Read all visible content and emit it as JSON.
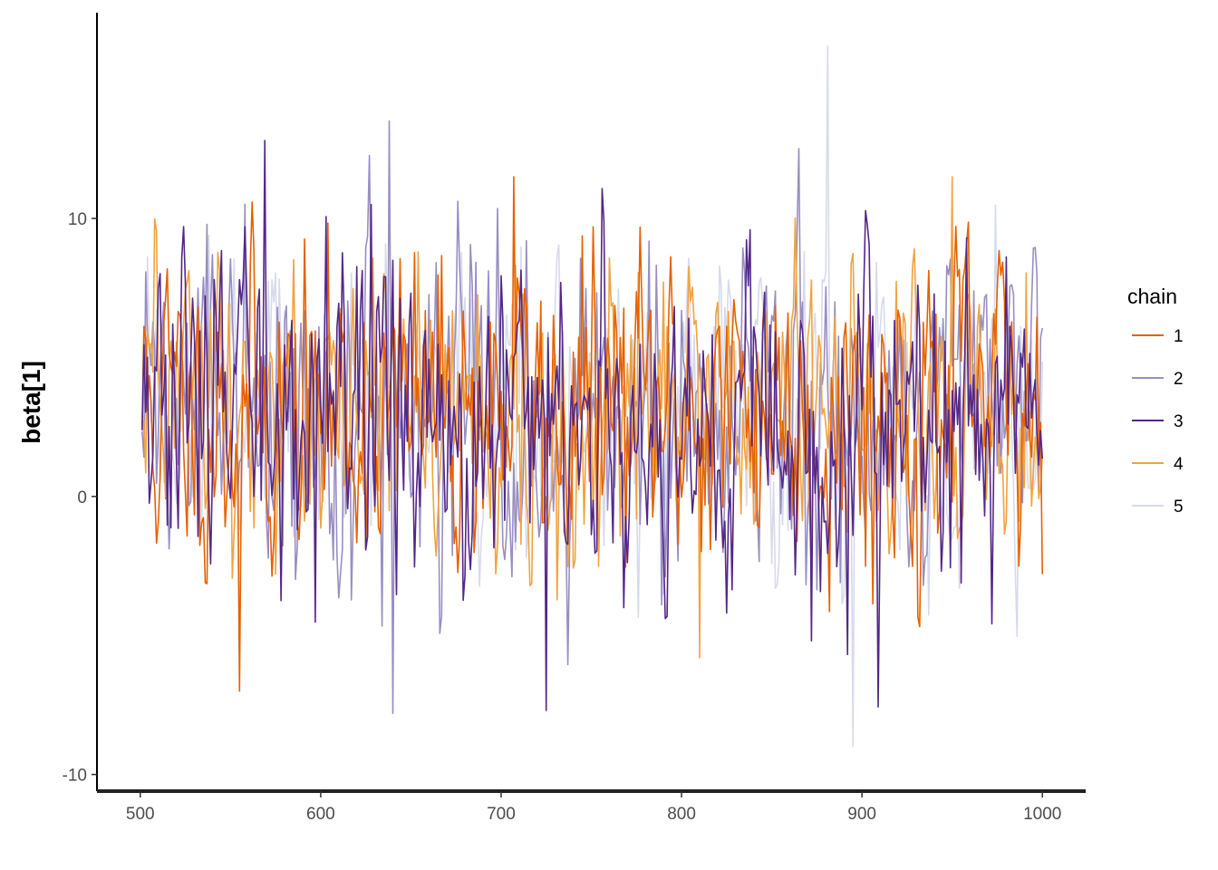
{
  "chart_data": {
    "type": "line",
    "title": "",
    "xlabel": "",
    "ylabel": "beta[1]",
    "xlim": [
      476,
      1024
    ],
    "ylim": [
      -10.6,
      17.4
    ],
    "x_ticks": [
      "500",
      "600",
      "700",
      "800",
      "900",
      "1000"
    ],
    "y_ticks": [
      "-10",
      "0",
      "10"
    ],
    "grid": false,
    "legend": {
      "title": "chain",
      "position": "right"
    },
    "x_range": [
      501,
      1000
    ],
    "series": [
      {
        "name": "1",
        "color": "#e66101",
        "mean": 3.1,
        "sd": 2.9,
        "min": -7.0,
        "max": 11.5,
        "seed": 11
      },
      {
        "name": "2",
        "color": "#998ec3",
        "mean": 3.0,
        "sd": 2.9,
        "min": -7.8,
        "max": 13.5,
        "seed": 22
      },
      {
        "name": "3",
        "color": "#542788",
        "mean": 3.0,
        "sd": 3.0,
        "min": -7.7,
        "max": 12.8,
        "seed": 33
      },
      {
        "name": "4",
        "color": "#fdb863",
        "stroke": "#f1a340",
        "mean": 3.2,
        "sd": 2.9,
        "min": -5.8,
        "max": 11.5,
        "seed": 44
      },
      {
        "name": "5",
        "color": "#d8daeb",
        "mean": 3.1,
        "sd": 2.7,
        "min": -9.0,
        "max": 16.2,
        "seed": 55
      }
    ]
  }
}
